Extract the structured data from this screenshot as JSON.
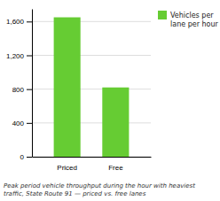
{
  "chart_data": {
    "type": "bar",
    "categories": [
      "Priced",
      "Free"
    ],
    "series": [
      {
        "name": "Vehicles per\nlane per hour",
        "color": "#66cc33",
        "values": [
          1650,
          820
        ]
      }
    ],
    "ylim": [
      0,
      1750
    ],
    "yticks": [
      0,
      400,
      800,
      {
        "value": 1200,
        "label": "1,200"
      },
      {
        "value": 1600,
        "label": "1,600"
      }
    ],
    "grid": true,
    "legend": "right",
    "caption": "Peak period vehicle throughput during the hour with heaviest\ntraffic, State Route 91 — priced vs. free lanes"
  }
}
